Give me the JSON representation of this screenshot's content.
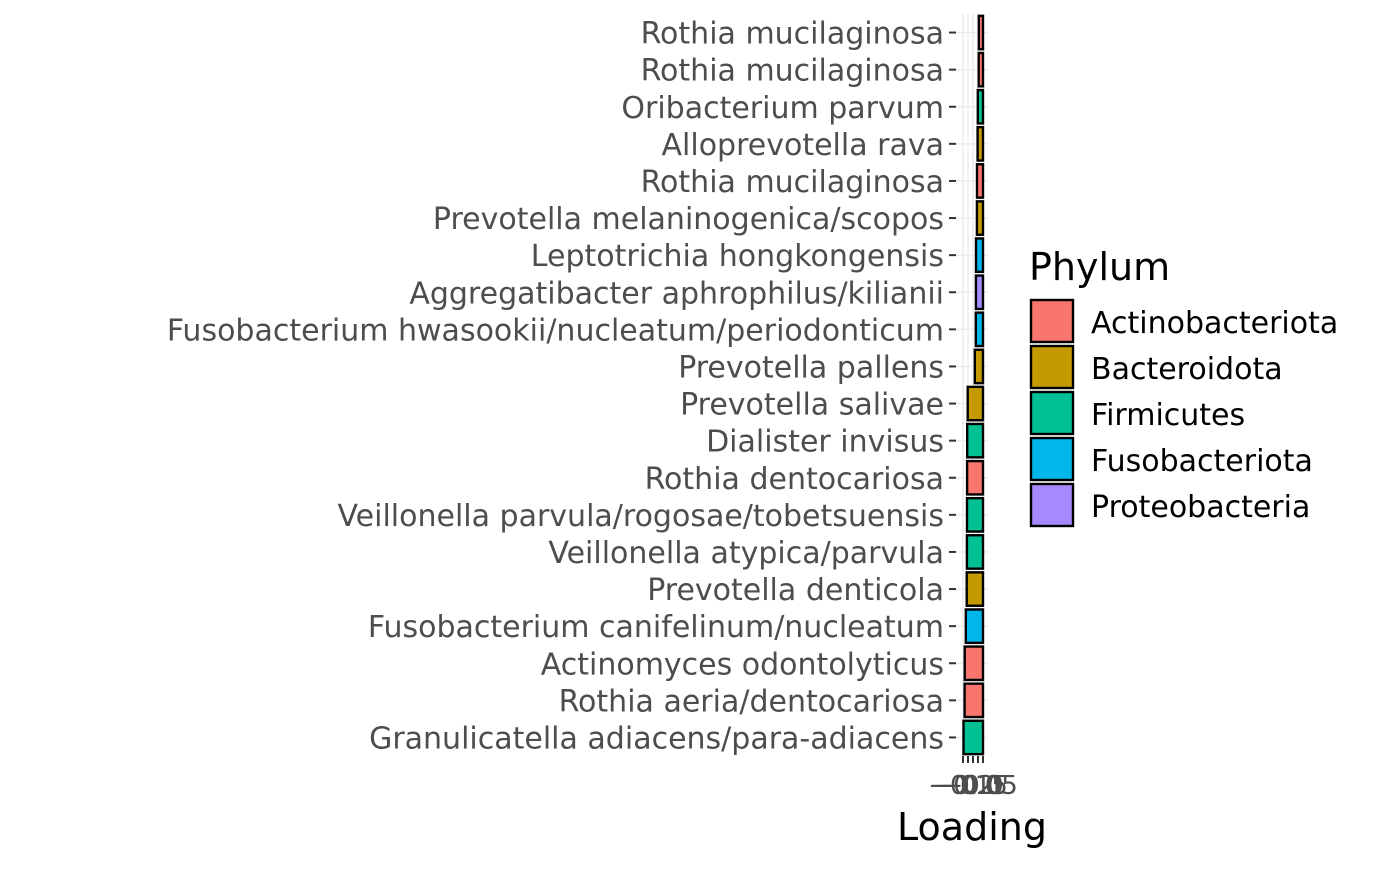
{
  "chart_data": {
    "type": "bar",
    "orientation": "horizontal",
    "title": "",
    "xlabel": "Loading",
    "ylabel": "",
    "xlim": [
      -0.27,
      0.05
    ],
    "x_ticks": [
      -0.2,
      -0.15,
      -0.1,
      -0.05,
      0.0
    ],
    "x_tick_labels": [
      "−0.2",
      "−0.15",
      "−0.1",
      "−0.05",
      "0.0"
    ],
    "grid": true,
    "legend": {
      "title": "Phylum",
      "position": "right",
      "entries": [
        {
          "label": "Actinobacteriota",
          "color": "#F8766D"
        },
        {
          "label": "Bacteroidota",
          "color": "#C49A00"
        },
        {
          "label": "Firmicutes",
          "color": "#00C094"
        },
        {
          "label": "Fusobacteriota",
          "color": "#00B6EB"
        },
        {
          "label": "Proteobacteria",
          "color": "#A58AFF"
        }
      ]
    },
    "bars": [
      {
        "label": "Rothia mucilaginosa",
        "value": -0.042,
        "phylum": "Actinobacteriota"
      },
      {
        "label": "Rothia mucilaginosa",
        "value": -0.043,
        "phylum": "Actinobacteriota"
      },
      {
        "label": "Oribacterium parvum",
        "value": -0.052,
        "phylum": "Firmicutes"
      },
      {
        "label": "Alloprevotella rava",
        "value": -0.054,
        "phylum": "Bacteroidota"
      },
      {
        "label": "Rothia mucilaginosa",
        "value": -0.06,
        "phylum": "Actinobacteriota"
      },
      {
        "label": "Prevotella melaninogenica/scopos",
        "value": -0.061,
        "phylum": "Bacteroidota"
      },
      {
        "label": "Leptotrichia hongkongensis",
        "value": -0.07,
        "phylum": "Fusobacteriota"
      },
      {
        "label": "Aggregatibacter aphrophilus/kilianii",
        "value": -0.071,
        "phylum": "Proteobacteria"
      },
      {
        "label": "Fusobacterium hwasookii/nucleatum/periodonticum",
        "value": -0.072,
        "phylum": "Fusobacteriota"
      },
      {
        "label": "Prevotella pallens",
        "value": -0.082,
        "phylum": "Bacteroidota"
      },
      {
        "label": "Prevotella salivae",
        "value": -0.153,
        "phylum": "Bacteroidota"
      },
      {
        "label": "Dialister invisus",
        "value": -0.158,
        "phylum": "Firmicutes"
      },
      {
        "label": "Rothia dentocariosa",
        "value": -0.159,
        "phylum": "Actinobacteriota"
      },
      {
        "label": "Veillonella parvula/rogosae/tobetsuensis",
        "value": -0.16,
        "phylum": "Firmicutes"
      },
      {
        "label": "Veillonella atypica/parvula",
        "value": -0.161,
        "phylum": "Firmicutes"
      },
      {
        "label": "Prevotella denticola",
        "value": -0.163,
        "phylum": "Bacteroidota"
      },
      {
        "label": "Fusobacterium canifelinum/nucleatum",
        "value": -0.172,
        "phylum": "Fusobacteriota"
      },
      {
        "label": "Actinomyces odontolyticus",
        "value": -0.183,
        "phylum": "Actinobacteriota"
      },
      {
        "label": "Rothia aeria/dentocariosa",
        "value": -0.184,
        "phylum": "Actinobacteriota"
      },
      {
        "label": "Granulicatella adiacens/para-adiacens",
        "value": -0.195,
        "phylum": "Firmicutes"
      }
    ]
  }
}
